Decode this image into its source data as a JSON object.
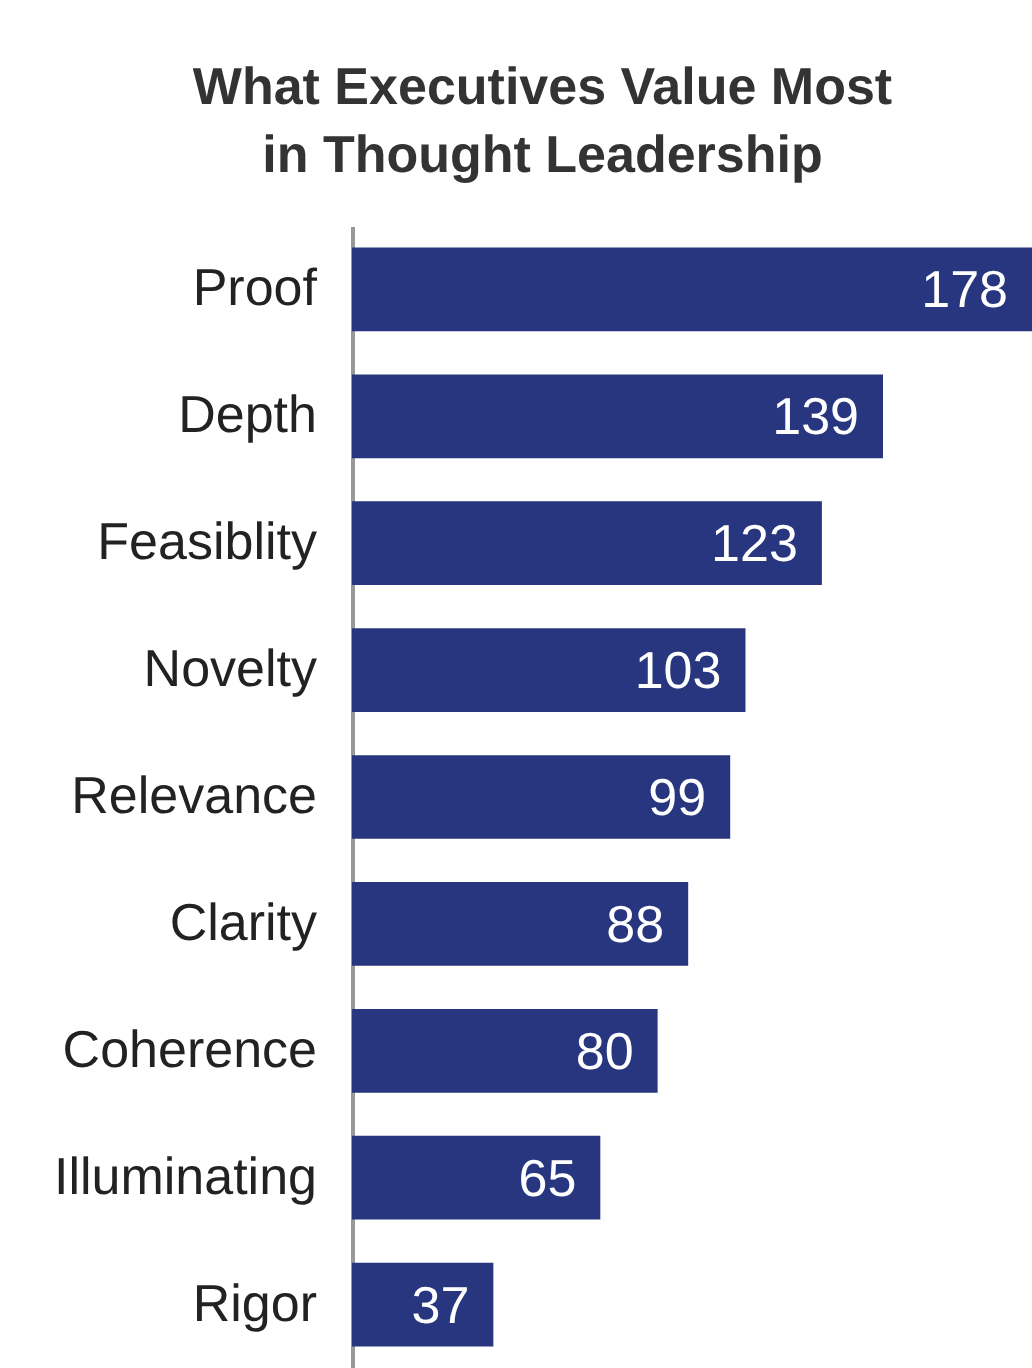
{
  "chart_data": {
    "type": "bar",
    "orientation": "horizontal",
    "title": "What Executives Value Most\nin Thought Leadership",
    "categories": [
      "Proof",
      "Depth",
      "Feasiblity",
      "Novelty",
      "Relevance",
      "Clarity",
      "Coherence",
      "Illuminating",
      "Rigor"
    ],
    "values": [
      178,
      139,
      123,
      103,
      99,
      88,
      80,
      65,
      37
    ],
    "color": "#27367f",
    "data_labels": true
  }
}
